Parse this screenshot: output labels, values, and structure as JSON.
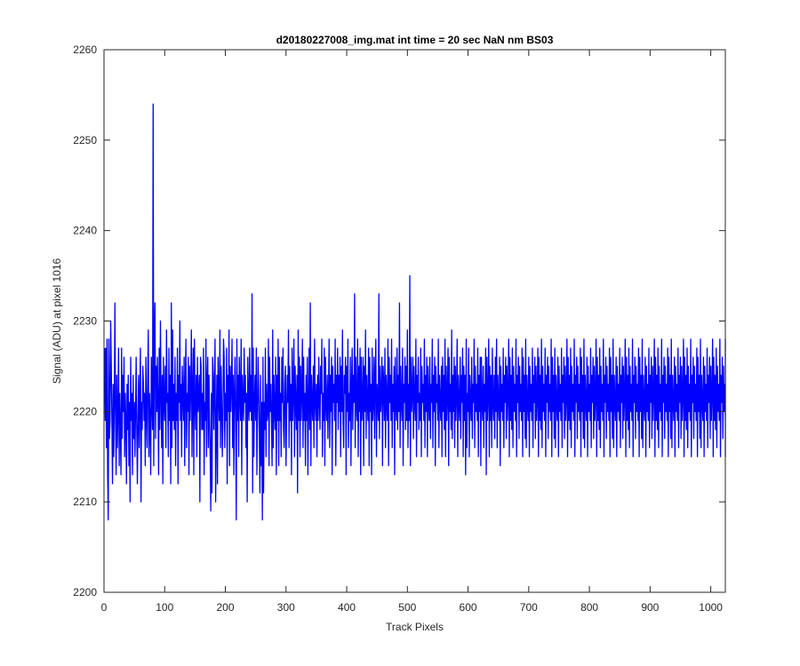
{
  "chart_data": {
    "type": "line",
    "title": "d20180227008_img.mat int time = 20 sec  NaN nm BS03",
    "xlabel": "Track Pixels",
    "ylabel": "Signal (ADU) at pixel 1016",
    "xlim": [
      0,
      1024
    ],
    "ylim": [
      2200,
      2260
    ],
    "xticks": [
      0,
      100,
      200,
      300,
      400,
      500,
      600,
      700,
      800,
      900,
      1000
    ],
    "yticks": [
      2200,
      2210,
      2220,
      2230,
      2240,
      2250,
      2260
    ],
    "grid": false,
    "legend": "none",
    "line_color": "#0000ff",
    "series": [
      {
        "x_start": 1,
        "x_step": 1,
        "values": [
          2227,
          2219,
          2227,
          2216,
          2228,
          2213,
          2208,
          2228,
          2217,
          2219,
          2230,
          2225,
          2219,
          2212,
          2223,
          2215,
          2221,
          2232,
          2219,
          2213,
          2224,
          2216,
          2220,
          2227,
          2214,
          2222,
          2218,
          2213,
          2227,
          2217,
          2224,
          2220,
          2226,
          2215,
          2222,
          2219,
          2212,
          2223,
          2218,
          2224,
          2214,
          2221,
          2210,
          2226,
          2219,
          2222,
          2213,
          2224,
          2217,
          2221,
          2215,
          2220,
          2226,
          2218,
          2212,
          2219,
          2224,
          2216,
          2222,
          2227,
          2210,
          2221,
          2218,
          2225,
          2223,
          2219,
          2222,
          2214,
          2226,
          2220,
          2216,
          2224,
          2229,
          2215,
          2222,
          2219,
          2213,
          2226,
          2221,
          2218,
          2254,
          2214,
          2228,
          2232,
          2217,
          2225,
          2220,
          2226,
          2221,
          2213,
          2227,
          2218,
          2230,
          2222,
          2216,
          2224,
          2212,
          2226,
          2221,
          2219,
          2225,
          2216,
          2229,
          2221,
          2222,
          2215,
          2227,
          2219,
          2224,
          2212,
          2232,
          2216,
          2229,
          2219,
          2223,
          2218,
          2226,
          2214,
          2222,
          2219,
          2227,
          2212,
          2224,
          2221,
          2230,
          2219,
          2223,
          2215,
          2225,
          2222,
          2219,
          2226,
          2214,
          2223,
          2228,
          2216,
          2222,
          2220,
          2226,
          2213,
          2225,
          2219,
          2223,
          2229,
          2215,
          2222,
          2227,
          2213,
          2228,
          2221,
          2218,
          2224,
          2215,
          2226,
          2220,
          2222,
          2224,
          2210,
          2226,
          2225,
          2218,
          2222,
          2218,
          2227,
          2213,
          2221,
          2219,
          2228,
          2215,
          2223,
          2226,
          2216,
          2224,
          2219,
          2215,
          2209,
          2222,
          2211,
          2226,
          2224,
          2218,
          2223,
          2228,
          2210,
          2218,
          2224,
          2212,
          2226,
          2222,
          2219,
          2229,
          2216,
          2225,
          2221,
          2215,
          2219,
          2228,
          2226,
          2216,
          2222,
          2219,
          2227,
          2212,
          2224,
          2220,
          2229,
          2214,
          2225,
          2220,
          2223,
          2228,
          2216,
          2224,
          2213,
          2222,
          2226,
          2219,
          2208,
          2228,
          2219,
          2224,
          2215,
          2226,
          2222,
          2219,
          2228,
          2213,
          2224,
          2221,
          2219,
          2227,
          2221,
          2224,
          2216,
          2222,
          2210,
          2226,
          2221,
          2219,
          2227,
          2220,
          2224,
          2219,
          2233,
          2211,
          2227,
          2215,
          2221,
          2224,
          2219,
          2227,
          2213,
          2220,
          2226,
          2222,
          2217,
          2211,
          2224,
          2214,
          2221,
          2208,
          2226,
          2211,
          2221,
          2218,
          2227,
          2215,
          2223,
          2219,
          2220,
          2228,
          2214,
          2226,
          2220,
          2223,
          2219,
          2214,
          2229,
          2216,
          2224,
          2220,
          2218,
          2226,
          2213,
          2224,
          2219,
          2228,
          2214,
          2226,
          2219,
          2222,
          2215,
          2226,
          2221,
          2227,
          2218,
          2216,
          2223,
          2225,
          2214,
          2220,
          2224,
          2221,
          2229,
          2216,
          2225,
          2219,
          2223,
          2213,
          2227,
          2219,
          2222,
          2228,
          2215,
          2225,
          2221,
          2218,
          2224,
          2211,
          2229,
          2219,
          2226,
          2215,
          2225,
          2219,
          2222,
          2228,
          2216,
          2226,
          2219,
          2222,
          2214,
          2224,
          2219,
          2226,
          2213,
          2221,
          2227,
          2218,
          2232,
          2214,
          2224,
          2221,
          2219,
          2225,
          2216,
          2228,
          2221,
          2219,
          2223,
          2215,
          2224,
          2219,
          2226,
          2221,
          2218,
          2225,
          2222,
          2228,
          2215,
          2222,
          2219,
          2227,
          2214,
          2226,
          2221,
          2219,
          2224,
          2217,
          2222,
          2228,
          2216,
          2224,
          2220,
          2226,
          2213,
          2225,
          2221,
          2223,
          2219,
          2228,
          2214,
          2224,
          2221,
          2227,
          2218,
          2224,
          2220,
          2226,
          2215,
          2225,
          2220,
          2229,
          2219,
          2216,
          2224,
          2222,
          2226,
          2213,
          2225,
          2220,
          2228,
          2216,
          2222,
          2219,
          2226,
          2214,
          2223,
          2227,
          2218,
          2224,
          2221,
          2233,
          2216,
          2226,
          2221,
          2219,
          2228,
          2215,
          2225,
          2220,
          2227,
          2213,
          2226,
          2219,
          2221,
          2226,
          2214,
          2225,
          2220,
          2229,
          2217,
          2224,
          2221,
          2219,
          2227,
          2214,
          2226,
          2220,
          2223,
          2213,
          2227,
          2219,
          2221,
          2226,
          2217,
          2224,
          2228,
          2215,
          2223,
          2221,
          2219,
          2233,
          2217,
          2225,
          2220,
          2222,
          2226,
          2214,
          2225,
          2223,
          2219,
          2227,
          2216,
          2224,
          2221,
          2219,
          2228,
          2214,
          2226,
          2221,
          2224,
          2219,
          2228,
          2216,
          2223,
          2220,
          2225,
          2213,
          2226,
          2221,
          2219,
          2227,
          2218,
          2224,
          2220,
          2232,
          2216,
          2225,
          2221,
          2219,
          2227,
          2214,
          2223,
          2221,
          2226,
          2218,
          2225,
          2219,
          2229,
          2216,
          2223,
          2219,
          2235,
          2214,
          2226,
          2220,
          2222,
          2226,
          2217,
          2225,
          2221,
          2219,
          2228,
          2215,
          2224,
          2221,
          2226,
          2218,
          2222,
          2219,
          2227,
          2215,
          2225,
          2221,
          2223,
          2219,
          2228,
          2216,
          2224,
          2220,
          2226,
          2215,
          2225,
          2221,
          2219,
          2226,
          2217,
          2223,
          2221,
          2228,
          2216,
          2224,
          2220,
          2226,
          2214,
          2225,
          2221,
          2223,
          2219,
          2228,
          2216,
          2224,
          2221,
          2219,
          2225,
          2215,
          2226,
          2220,
          2224,
          2218,
          2228,
          2215,
          2225,
          2219,
          2222,
          2227,
          2214,
          2226,
          2220,
          2223,
          2218,
          2229,
          2217,
          2224,
          2220,
          2226,
          2216,
          2225,
          2219,
          2222,
          2228,
          2215,
          2224,
          2221,
          2219,
          2226,
          2217,
          2224,
          2221,
          2227,
          2215,
          2225,
          2219,
          2224,
          2213,
          2228,
          2216,
          2222,
          2220,
          2227,
          2215,
          2224,
          2221,
          2219,
          2226,
          2217,
          2223,
          2221,
          2228,
          2216,
          2225,
          2220,
          2223,
          2219,
          2227,
          2215,
          2224,
          2220,
          2226,
          2214,
          2226,
          2221,
          2219,
          2225,
          2216,
          2223,
          2220,
          2227,
          2213,
          2226,
          2219,
          2222,
          2228,
          2215,
          2225,
          2219,
          2224,
          2216,
          2227,
          2221,
          2219,
          2224,
          2217,
          2226,
          2220,
          2228,
          2216,
          2224,
          2221,
          2219,
          2226,
          2214,
          2225,
          2220,
          2223,
          2219,
          2227,
          2216,
          2224,
          2221,
          2226,
          2217,
          2225,
          2219,
          2222,
          2228,
          2215,
          2226,
          2219,
          2224,
          2218,
          2227,
          2216,
          2225,
          2220,
          2223,
          2219,
          2228,
          2215,
          2224,
          2221,
          2226,
          2217,
          2225,
          2220,
          2223,
          2219,
          2227,
          2215,
          2226,
          2220,
          2224,
          2217,
          2228,
          2216,
          2224,
          2221,
          2219,
          2226,
          2215,
          2225,
          2220,
          2223,
          2219,
          2227,
          2216,
          2224,
          2221,
          2226,
          2217,
          2225,
          2219,
          2222,
          2227,
          2215,
          2226,
          2219,
          2224,
          2218,
          2228,
          2216,
          2225,
          2220,
          2223,
          2219,
          2227,
          2215,
          2224,
          2221,
          2226,
          2217,
          2225,
          2220,
          2223,
          2219,
          2228,
          2215,
          2226,
          2220,
          2224,
          2217,
          2227,
          2216,
          2224,
          2221,
          2219,
          2226,
          2215,
          2225,
          2220,
          2223,
          2219,
          2227,
          2216,
          2224,
          2221,
          2226,
          2217,
          2225,
          2219,
          2222,
          2228,
          2215,
          2226,
          2219,
          2224,
          2218,
          2227,
          2216,
          2225,
          2220,
          2223,
          2219,
          2228,
          2215,
          2224,
          2221,
          2226,
          2217,
          2225,
          2220,
          2223,
          2219,
          2227,
          2215,
          2226,
          2220,
          2224,
          2217,
          2228,
          2216,
          2224,
          2221,
          2219,
          2226,
          2215,
          2225,
          2220,
          2223,
          2219,
          2227,
          2216,
          2224,
          2221,
          2226,
          2217,
          2225,
          2219,
          2222,
          2228,
          2215,
          2226,
          2219,
          2224,
          2218,
          2227,
          2216,
          2225,
          2220,
          2223,
          2219,
          2228,
          2215,
          2224,
          2221,
          2226,
          2217,
          2225,
          2220,
          2223,
          2219,
          2227,
          2215,
          2226,
          2220,
          2224,
          2217,
          2228,
          2216,
          2224,
          2221,
          2219,
          2226,
          2215,
          2225,
          2220,
          2223,
          2219,
          2227,
          2216,
          2224,
          2221,
          2226,
          2217,
          2225,
          2219,
          2222,
          2228,
          2215,
          2226,
          2219,
          2224,
          2218,
          2227,
          2216,
          2225,
          2220,
          2223,
          2219,
          2228,
          2215,
          2224,
          2221,
          2226,
          2217,
          2225,
          2220,
          2223,
          2219,
          2227,
          2215,
          2226,
          2220,
          2224,
          2217,
          2228,
          2216,
          2224,
          2221,
          2219,
          2226,
          2215,
          2225,
          2220,
          2223,
          2219,
          2227,
          2216,
          2224,
          2221,
          2226,
          2217,
          2225,
          2219,
          2222,
          2228,
          2215,
          2226,
          2219,
          2224,
          2218,
          2227,
          2216,
          2225,
          2220,
          2223,
          2219,
          2228,
          2215,
          2224,
          2221,
          2226,
          2217,
          2225,
          2220,
          2223,
          2219,
          2227,
          2215,
          2226,
          2220,
          2224,
          2217,
          2228,
          2216,
          2224,
          2221,
          2219,
          2226,
          2215,
          2225,
          2220,
          2223,
          2219,
          2227,
          2216,
          2224,
          2221,
          2226,
          2217,
          2225,
          2219,
          2222,
          2228,
          2215,
          2226,
          2219,
          2224,
          2218,
          2227,
          2216,
          2225,
          2220,
          2223,
          2219,
          2228,
          2215,
          2224,
          2221,
          2226,
          2217,
          2225,
          2220,
          2223,
          2219,
          2227,
          2215,
          2226,
          2220,
          2224,
          2217,
          2228,
          2216,
          2224,
          2221,
          2219,
          2226,
          2215,
          2225,
          2220,
          2223,
          2219,
          2227,
          2216,
          2224,
          2221,
          2226,
          2217,
          2225,
          2219,
          2222,
          2228,
          2215,
          2226,
          2219,
          2224,
          2218,
          2227,
          2216,
          2225,
          2220,
          2223,
          2219,
          2228,
          2215,
          2224,
          2221,
          2226,
          2217,
          2225,
          2220,
          2223,
          2219,
          2227,
          2215,
          2226,
          2220,
          2224,
          2217,
          2228,
          2216,
          2224,
          2221,
          2219,
          2226,
          2215,
          2225,
          2220,
          2223,
          2219,
          2227,
          2216,
          2224,
          2221,
          2226,
          2217,
          2225,
          2219,
          2222,
          2228,
          2215,
          2226,
          2219,
          2224,
          2218,
          2227,
          2216,
          2225,
          2220,
          2223,
          2219,
          2228,
          2215,
          2224,
          2221,
          2226,
          2217,
          2225,
          2220,
          2223,
          2219
        ]
      }
    ]
  }
}
